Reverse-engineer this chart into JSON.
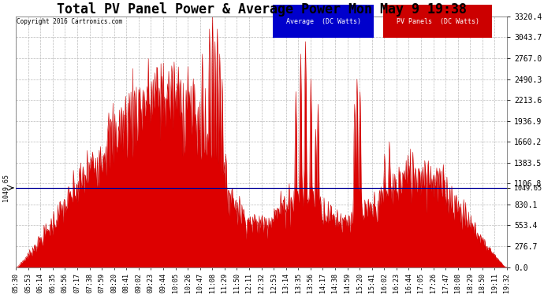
{
  "title": "Total PV Panel Power & Average Power Mon May 9 19:38",
  "copyright": "Copyright 2016 Cartronics.com",
  "legend_labels": [
    "Average  (DC Watts)",
    "PV Panels  (DC Watts)"
  ],
  "legend_bg_colors": [
    "#0000cc",
    "#cc0000"
  ],
  "legend_text_color": "#ffffff",
  "y_ticks": [
    0.0,
    276.7,
    553.4,
    830.1,
    1106.8,
    1383.5,
    1660.2,
    1936.9,
    2213.6,
    2490.3,
    2767.0,
    3043.7,
    3320.4
  ],
  "y_max": 3320.4,
  "y_min": 0.0,
  "average_value": 1049.65,
  "background_color": "#ffffff",
  "plot_bg_color": "#ffffff",
  "fill_color": "#dd0000",
  "line_color": "#cc0000",
  "avg_line_color": "#000099",
  "grid_color": "#bbbbbb",
  "title_fontsize": 12,
  "x_label_fontsize": 6,
  "y_label_fontsize": 7,
  "x_tick_labels": [
    "05:30",
    "05:53",
    "06:14",
    "06:35",
    "06:56",
    "07:17",
    "07:38",
    "07:59",
    "08:20",
    "08:41",
    "09:02",
    "09:23",
    "09:44",
    "10:05",
    "10:26",
    "10:47",
    "11:08",
    "11:29",
    "11:50",
    "12:11",
    "12:32",
    "12:53",
    "13:14",
    "13:35",
    "13:56",
    "14:17",
    "14:38",
    "14:59",
    "15:20",
    "15:41",
    "16:02",
    "16:23",
    "16:44",
    "17:05",
    "17:26",
    "17:47",
    "18:08",
    "18:29",
    "18:50",
    "19:11",
    "19:32"
  ]
}
